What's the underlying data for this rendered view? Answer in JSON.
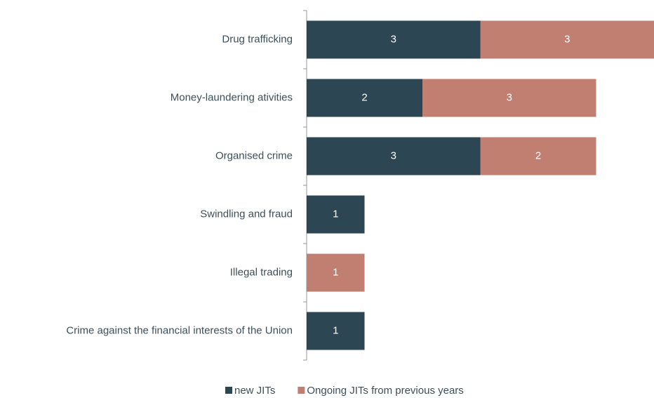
{
  "chart_data": {
    "type": "stacked_bar_horizontal",
    "categories": [
      "Drug trafficking",
      "Money-laundering ativities",
      "Organised crime",
      "Swindling and fraud",
      "Illegal trading",
      "Crime against the financial interests of the Union"
    ],
    "series": [
      {
        "name": "new JITs",
        "color": "#2c4653",
        "values": [
          3,
          2,
          3,
          1,
          0,
          1
        ]
      },
      {
        "name": "Ongoing JITs from previous years",
        "color": "#c07f70",
        "values": [
          3,
          3,
          2,
          0,
          1,
          0
        ]
      }
    ],
    "xlim": [
      0,
      6
    ],
    "legend": "bottom"
  }
}
